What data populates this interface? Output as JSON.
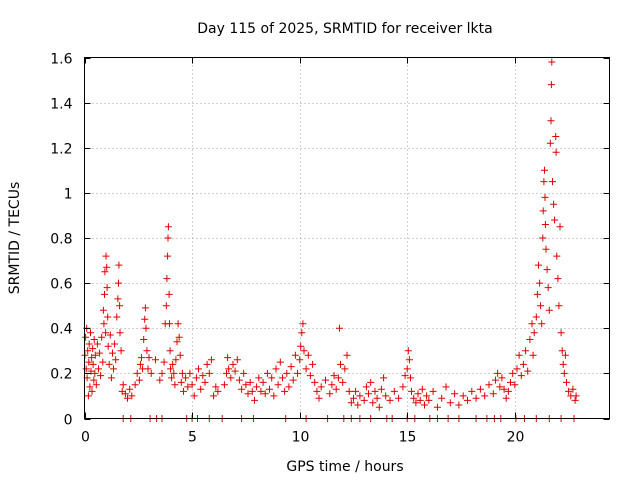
{
  "chart_data": {
    "type": "scatter",
    "title": "Day 115 of 2025, SRMTID for receiver lkta",
    "xlabel": "GPS time / hours",
    "ylabel": "SRMTID / TECUs",
    "xlim": [
      0,
      24.4
    ],
    "ylim": [
      0,
      1.6
    ],
    "xticks": [
      0,
      5,
      10,
      15,
      20
    ],
    "yticks": [
      0,
      0.2,
      0.4,
      0.6,
      0.8,
      1,
      1.2,
      1.4,
      1.6
    ],
    "xtick_labels": [
      "0",
      "5",
      "10",
      "15",
      "20"
    ],
    "ytick_labels": [
      "0",
      "0.2",
      "0.4",
      "0.6",
      "0.8",
      "1",
      "1.2",
      "1.4",
      "1.6"
    ],
    "grid": true,
    "marker": "+",
    "color": "#e00000",
    "series": [
      {
        "name": "SRMTID",
        "points": [
          [
            0.02,
            0.28
          ],
          [
            0.05,
            0.36
          ],
          [
            0.08,
            0.22
          ],
          [
            0.1,
            0.4
          ],
          [
            0.12,
            0.18
          ],
          [
            0.15,
            0.3
          ],
          [
            0.18,
            0.1
          ],
          [
            0.2,
            0.25
          ],
          [
            0.22,
            0.33
          ],
          [
            0.25,
            0.14
          ],
          [
            0.28,
            0.38
          ],
          [
            0.3,
            0.21
          ],
          [
            0.33,
            0.27
          ],
          [
            0.35,
            0.12
          ],
          [
            0.38,
            0.31
          ],
          [
            0.4,
            0.24
          ],
          [
            0.43,
            0.17
          ],
          [
            0.45,
            0.35
          ],
          [
            0.48,
            0.2
          ],
          [
            0.5,
            0.28
          ],
          [
            0.55,
            0.15
          ],
          [
            0.6,
            0.33
          ],
          [
            0.65,
            0.22
          ],
          [
            0.7,
            0.29
          ],
          [
            0.75,
            0.19
          ],
          [
            0.8,
            0.36
          ],
          [
            0.85,
            0.25
          ],
          [
            0.88,
            0.48
          ],
          [
            0.9,
            0.42
          ],
          [
            0.93,
            0.55
          ],
          [
            0.95,
            0.65
          ],
          [
            0.98,
            0.38
          ],
          [
            1.0,
            0.72
          ],
          [
            1.03,
            0.67
          ],
          [
            1.05,
            0.58
          ],
          [
            1.08,
            0.45
          ],
          [
            1.1,
            0.32
          ],
          [
            1.15,
            0.24
          ],
          [
            1.2,
            0.37
          ],
          [
            1.25,
            0.18
          ],
          [
            1.3,
            0.29
          ],
          [
            1.35,
            0.22
          ],
          [
            1.4,
            0.33
          ],
          [
            1.45,
            0.26
          ],
          [
            1.5,
            0.45
          ],
          [
            1.55,
            0.53
          ],
          [
            1.58,
            0.6
          ],
          [
            1.6,
            0.68
          ],
          [
            1.63,
            0.5
          ],
          [
            1.65,
            0.38
          ],
          [
            1.7,
            0.3
          ],
          [
            1.75,
            0.12
          ],
          [
            1.8,
            0.15
          ],
          [
            1.9,
            0.11
          ],
          [
            2.0,
            0.09
          ],
          [
            2.1,
            0.13
          ],
          [
            2.2,
            0.1
          ],
          [
            2.35,
            0.15
          ],
          [
            2.45,
            0.2
          ],
          [
            2.55,
            0.17
          ],
          [
            2.6,
            0.24
          ],
          [
            2.65,
            0.27
          ],
          [
            2.7,
            0.22
          ],
          [
            2.75,
            0.35
          ],
          [
            2.8,
            0.44
          ],
          [
            2.83,
            0.49
          ],
          [
            2.86,
            0.4
          ],
          [
            2.9,
            0.3
          ],
          [
            2.95,
            0.22
          ],
          [
            3.0,
            0.27
          ],
          [
            3.1,
            0.2
          ],
          [
            3.3,
            0.26
          ],
          [
            3.5,
            0.17
          ],
          [
            3.6,
            0.2
          ],
          [
            3.7,
            0.25
          ],
          [
            3.75,
            0.42
          ],
          [
            3.8,
            0.5
          ],
          [
            3.83,
            0.62
          ],
          [
            3.86,
            0.72
          ],
          [
            3.88,
            0.8
          ],
          [
            3.9,
            0.85
          ],
          [
            3.93,
            0.55
          ],
          [
            3.95,
            0.42
          ],
          [
            3.98,
            0.3
          ],
          [
            4.0,
            0.22
          ],
          [
            4.05,
            0.18
          ],
          [
            4.1,
            0.24
          ],
          [
            4.15,
            0.2
          ],
          [
            4.2,
            0.15
          ],
          [
            4.25,
            0.26
          ],
          [
            4.3,
            0.34
          ],
          [
            4.35,
            0.42
          ],
          [
            4.4,
            0.36
          ],
          [
            4.45,
            0.28
          ],
          [
            4.5,
            0.16
          ],
          [
            4.55,
            0.2
          ],
          [
            4.6,
            0.12
          ],
          [
            4.7,
            0.18
          ],
          [
            4.8,
            0.14
          ],
          [
            4.9,
            0.2
          ],
          [
            5.0,
            0.15
          ],
          [
            5.1,
            0.1
          ],
          [
            5.2,
            0.18
          ],
          [
            5.3,
            0.22
          ],
          [
            5.4,
            0.13
          ],
          [
            5.5,
            0.19
          ],
          [
            5.6,
            0.16
          ],
          [
            5.7,
            0.24
          ],
          [
            5.8,
            0.2
          ],
          [
            5.9,
            0.26
          ],
          [
            6.0,
            0.1
          ],
          [
            6.1,
            0.14
          ],
          [
            6.2,
            0.12
          ],
          [
            6.5,
            0.15
          ],
          [
            6.6,
            0.2
          ],
          [
            6.65,
            0.27
          ],
          [
            6.7,
            0.22
          ],
          [
            6.8,
            0.18
          ],
          [
            6.9,
            0.24
          ],
          [
            7.0,
            0.21
          ],
          [
            7.1,
            0.26
          ],
          [
            7.2,
            0.17
          ],
          [
            7.3,
            0.13
          ],
          [
            7.4,
            0.2
          ],
          [
            7.5,
            0.15
          ],
          [
            7.6,
            0.11
          ],
          [
            7.7,
            0.16
          ],
          [
            7.8,
            0.12
          ],
          [
            7.9,
            0.08
          ],
          [
            8.0,
            0.14
          ],
          [
            8.1,
            0.18
          ],
          [
            8.2,
            0.12
          ],
          [
            8.3,
            0.16
          ],
          [
            8.4,
            0.11
          ],
          [
            8.5,
            0.2
          ],
          [
            8.6,
            0.13
          ],
          [
            8.7,
            0.18
          ],
          [
            8.8,
            0.1
          ],
          [
            8.9,
            0.22
          ],
          [
            9.0,
            0.15
          ],
          [
            9.1,
            0.25
          ],
          [
            9.2,
            0.18
          ],
          [
            9.3,
            0.12
          ],
          [
            9.4,
            0.2
          ],
          [
            9.5,
            0.14
          ],
          [
            9.6,
            0.23
          ],
          [
            9.7,
            0.17
          ],
          [
            9.8,
            0.28
          ],
          [
            9.9,
            0.2
          ],
          [
            10.0,
            0.26
          ],
          [
            10.05,
            0.32
          ],
          [
            10.1,
            0.38
          ],
          [
            10.15,
            0.42
          ],
          [
            10.2,
            0.3
          ],
          [
            10.3,
            0.22
          ],
          [
            10.4,
            0.28
          ],
          [
            10.5,
            0.19
          ],
          [
            10.6,
            0.24
          ],
          [
            10.7,
            0.16
          ],
          [
            10.8,
            0.12
          ],
          [
            10.9,
            0.09
          ],
          [
            11.0,
            0.14
          ],
          [
            11.2,
            0.17
          ],
          [
            11.4,
            0.11
          ],
          [
            11.5,
            0.15
          ],
          [
            11.6,
            0.19
          ],
          [
            11.7,
            0.13
          ],
          [
            11.8,
            0.18
          ],
          [
            11.85,
            0.4
          ],
          [
            11.9,
            0.24
          ],
          [
            12.0,
            0.16
          ],
          [
            12.1,
            0.22
          ],
          [
            12.2,
            0.28
          ],
          [
            12.3,
            0.12
          ],
          [
            12.4,
            0.07
          ],
          [
            12.5,
            0.09
          ],
          [
            12.6,
            0.12
          ],
          [
            12.7,
            0.06
          ],
          [
            12.8,
            0.1
          ],
          [
            13.0,
            0.08
          ],
          [
            13.1,
            0.14
          ],
          [
            13.2,
            0.11
          ],
          [
            13.3,
            0.16
          ],
          [
            13.4,
            0.07
          ],
          [
            13.5,
            0.12
          ],
          [
            13.6,
            0.09
          ],
          [
            13.7,
            0.05
          ],
          [
            13.8,
            0.13
          ],
          [
            13.9,
            0.18
          ],
          [
            14.0,
            0.1
          ],
          [
            14.2,
            0.08
          ],
          [
            14.4,
            0.12
          ],
          [
            14.6,
            0.09
          ],
          [
            14.8,
            0.14
          ],
          [
            14.9,
            0.19
          ],
          [
            15.0,
            0.22
          ],
          [
            15.05,
            0.3
          ],
          [
            15.1,
            0.26
          ],
          [
            15.15,
            0.18
          ],
          [
            15.2,
            0.12
          ],
          [
            15.3,
            0.09
          ],
          [
            15.4,
            0.07
          ],
          [
            15.5,
            0.11
          ],
          [
            15.6,
            0.08
          ],
          [
            15.7,
            0.13
          ],
          [
            15.8,
            0.06
          ],
          [
            15.9,
            0.1
          ],
          [
            16.0,
            0.08
          ],
          [
            16.2,
            0.12
          ],
          [
            16.4,
            0.05
          ],
          [
            16.6,
            0.09
          ],
          [
            16.8,
            0.14
          ],
          [
            17.0,
            0.07
          ],
          [
            17.2,
            0.11
          ],
          [
            17.4,
            0.06
          ],
          [
            17.6,
            0.1
          ],
          [
            17.8,
            0.08
          ],
          [
            18.0,
            0.12
          ],
          [
            18.2,
            0.09
          ],
          [
            18.4,
            0.13
          ],
          [
            18.6,
            0.1
          ],
          [
            18.8,
            0.15
          ],
          [
            19.0,
            0.11
          ],
          [
            19.1,
            0.17
          ],
          [
            19.2,
            0.2
          ],
          [
            19.3,
            0.14
          ],
          [
            19.4,
            0.18
          ],
          [
            19.5,
            0.13
          ],
          [
            19.6,
            0.09
          ],
          [
            19.7,
            0.12
          ],
          [
            19.8,
            0.16
          ],
          [
            19.9,
            0.2
          ],
          [
            20.0,
            0.15
          ],
          [
            20.1,
            0.22
          ],
          [
            20.2,
            0.28
          ],
          [
            20.3,
            0.19
          ],
          [
            20.4,
            0.24
          ],
          [
            20.5,
            0.3
          ],
          [
            20.6,
            0.21
          ],
          [
            20.7,
            0.35
          ],
          [
            20.8,
            0.42
          ],
          [
            20.85,
            0.28
          ],
          [
            20.9,
            0.38
          ],
          [
            21.0,
            0.45
          ],
          [
            21.05,
            0.55
          ],
          [
            21.1,
            0.68
          ],
          [
            21.15,
            0.6
          ],
          [
            21.2,
            0.5
          ],
          [
            21.25,
            0.42
          ],
          [
            21.3,
            0.8
          ],
          [
            21.32,
            0.92
          ],
          [
            21.35,
            1.05
          ],
          [
            21.38,
            1.1
          ],
          [
            21.4,
            0.98
          ],
          [
            21.42,
            0.86
          ],
          [
            21.45,
            0.75
          ],
          [
            21.5,
            0.66
          ],
          [
            21.55,
            0.58
          ],
          [
            21.6,
            0.48
          ],
          [
            21.65,
            1.22
          ],
          [
            21.68,
            1.32
          ],
          [
            21.7,
            1.48
          ],
          [
            21.72,
            1.58
          ],
          [
            21.75,
            1.05
          ],
          [
            21.8,
            0.95
          ],
          [
            21.85,
            0.88
          ],
          [
            21.9,
            1.25
          ],
          [
            21.92,
            1.18
          ],
          [
            21.95,
            0.72
          ],
          [
            22.0,
            0.62
          ],
          [
            22.05,
            0.5
          ],
          [
            22.1,
            0.85
          ],
          [
            22.15,
            0.38
          ],
          [
            22.2,
            0.3
          ],
          [
            22.25,
            0.24
          ],
          [
            22.3,
            0.2
          ],
          [
            22.35,
            0.28
          ],
          [
            22.4,
            0.16
          ],
          [
            22.5,
            0.12
          ],
          [
            22.6,
            0.1
          ],
          [
            22.7,
            0.13
          ],
          [
            22.8,
            0.08
          ],
          [
            22.85,
            0.1
          ],
          [
            1.8,
            0
          ],
          [
            2.15,
            0
          ],
          [
            3.05,
            0
          ],
          [
            3.35,
            0
          ],
          [
            3.6,
            0
          ],
          [
            4.75,
            0
          ],
          [
            5.0,
            0
          ],
          [
            5.25,
            0
          ],
          [
            5.8,
            0
          ],
          [
            6.4,
            0
          ],
          [
            7.3,
            0
          ],
          [
            7.85,
            0
          ],
          [
            9.35,
            0
          ],
          [
            10.3,
            0
          ],
          [
            11.3,
            0
          ],
          [
            12.05,
            0
          ],
          [
            12.4,
            0
          ],
          [
            12.8,
            0
          ],
          [
            13.3,
            0
          ],
          [
            14.05,
            0
          ],
          [
            14.3,
            0
          ],
          [
            15.0,
            0
          ],
          [
            15.35,
            0
          ],
          [
            16.05,
            0
          ],
          [
            16.4,
            0
          ],
          [
            16.9,
            0
          ],
          [
            17.4,
            0
          ],
          [
            18.2,
            0
          ],
          [
            18.7,
            0
          ],
          [
            19.05,
            0
          ],
          [
            19.35,
            0
          ],
          [
            20.05,
            0
          ],
          [
            20.45,
            0
          ],
          [
            21.0,
            0
          ],
          [
            21.6,
            0
          ],
          [
            22.15,
            0
          ],
          [
            22.75,
            0
          ]
        ]
      }
    ]
  }
}
